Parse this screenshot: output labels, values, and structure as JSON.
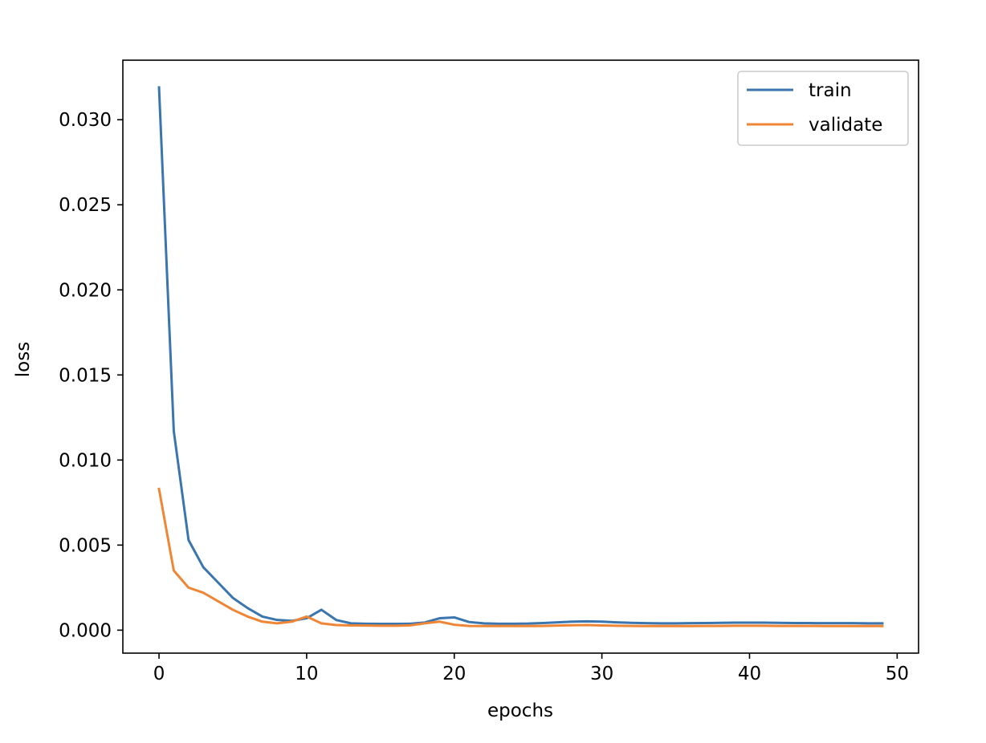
{
  "chart_data": {
    "type": "line",
    "title": "",
    "xlabel": "epochs",
    "ylabel": "loss",
    "xlim": [
      -2.45,
      51.45
    ],
    "ylim": [
      -0.00135,
      0.0335
    ],
    "xticks": [
      0,
      10,
      20,
      30,
      40,
      50
    ],
    "xtick_labels": [
      "0",
      "10",
      "20",
      "30",
      "40",
      "50"
    ],
    "yticks": [
      0.0,
      0.005,
      0.01,
      0.015,
      0.02,
      0.025,
      0.03
    ],
    "ytick_labels": [
      "0.000",
      "0.005",
      "0.010",
      "0.015",
      "0.020",
      "0.025",
      "0.030"
    ],
    "grid": false,
    "legend_position": "top-right",
    "x": [
      0,
      1,
      2,
      3,
      4,
      5,
      6,
      7,
      8,
      9,
      10,
      11,
      12,
      13,
      14,
      15,
      16,
      17,
      18,
      19,
      20,
      21,
      22,
      23,
      24,
      25,
      26,
      27,
      28,
      29,
      30,
      31,
      32,
      33,
      34,
      35,
      36,
      37,
      38,
      39,
      40,
      41,
      42,
      43,
      44,
      45,
      46,
      47,
      48,
      49
    ],
    "series": [
      {
        "name": "train",
        "color": "#3a75ae",
        "values": [
          0.0319,
          0.0117,
          0.0053,
          0.0037,
          0.0028,
          0.0019,
          0.0013,
          0.0008,
          0.0006,
          0.00055,
          0.0007,
          0.0012,
          0.0006,
          0.0004,
          0.00038,
          0.00037,
          0.00037,
          0.00038,
          0.00045,
          0.0007,
          0.00075,
          0.00048,
          0.0004,
          0.00038,
          0.00038,
          0.00039,
          0.00042,
          0.00046,
          0.0005,
          0.00052,
          0.0005,
          0.00046,
          0.00043,
          0.00041,
          0.0004,
          0.0004,
          0.00041,
          0.00042,
          0.00043,
          0.00044,
          0.00044,
          0.00044,
          0.00043,
          0.00042,
          0.00042,
          0.00041,
          0.00041,
          0.00041,
          0.0004,
          0.0004
        ]
      },
      {
        "name": "validate",
        "color": "#ef8636",
        "values": [
          0.0083,
          0.0035,
          0.0025,
          0.0022,
          0.0017,
          0.0012,
          0.0008,
          0.0005,
          0.0004,
          0.0005,
          0.0008,
          0.0004,
          0.0003,
          0.00028,
          0.00027,
          0.00026,
          0.00026,
          0.00028,
          0.0004,
          0.0005,
          0.00032,
          0.00025,
          0.00024,
          0.00024,
          0.00024,
          0.00024,
          0.00025,
          0.00027,
          0.00029,
          0.0003,
          0.00028,
          0.00026,
          0.00025,
          0.00024,
          0.00024,
          0.00024,
          0.00024,
          0.00025,
          0.00025,
          0.00026,
          0.00026,
          0.00026,
          0.00025,
          0.00025,
          0.00025,
          0.00024,
          0.00024,
          0.00024,
          0.00024,
          0.00024
        ]
      }
    ]
  }
}
